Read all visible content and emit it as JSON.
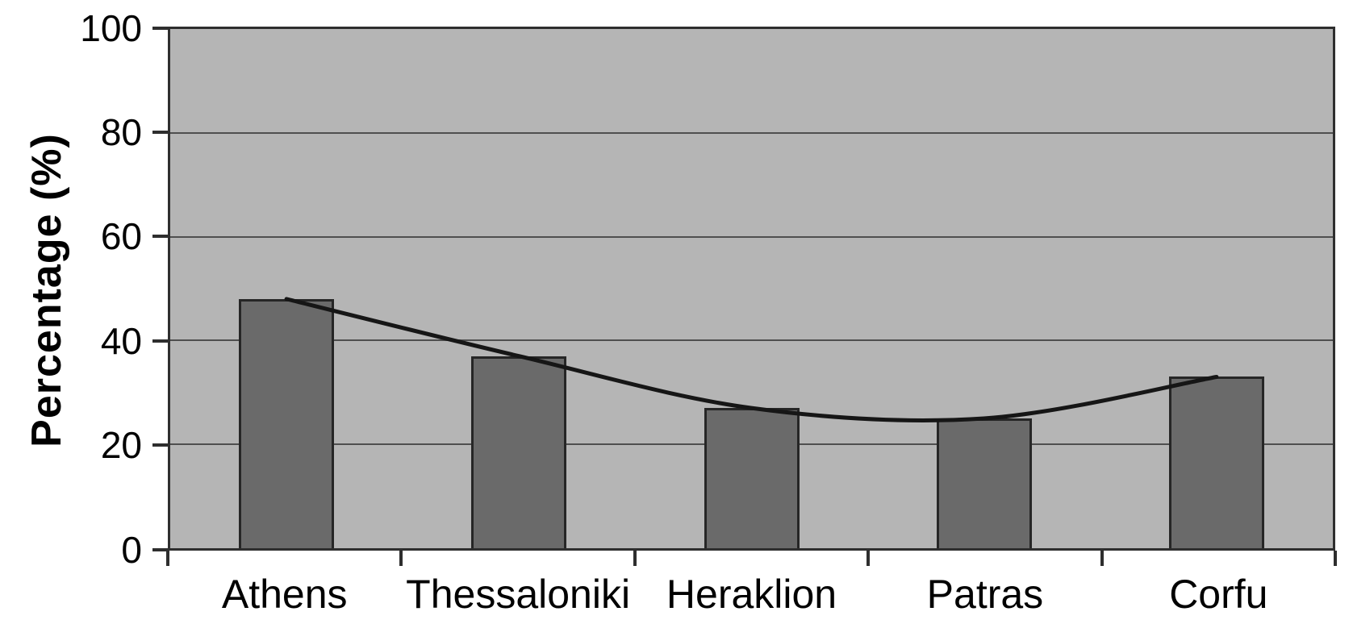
{
  "chart_data": {
    "type": "bar",
    "title": "",
    "xlabel": "",
    "ylabel": "Percentage (%)",
    "categories": [
      "Athens",
      "Thessaloniki",
      "Heraklion",
      "Patras",
      "Corfu"
    ],
    "values": [
      48,
      37,
      27,
      25,
      33
    ],
    "series": [
      {
        "name": "percentage-bars",
        "type": "bar",
        "values": [
          48,
          37,
          27,
          25,
          33
        ]
      },
      {
        "name": "trend-line",
        "type": "line",
        "values": [
          48,
          37,
          27,
          25,
          33
        ]
      }
    ],
    "ylim": [
      0,
      100
    ],
    "yticks": [
      100,
      80,
      60,
      40,
      20,
      0
    ],
    "grid": true,
    "legend_position": "none"
  },
  "colors": {
    "background": "#ffffff",
    "plot_background": "#b5b5b5",
    "bar_fill": "#6a6a6a",
    "bar_border": "#262626",
    "gridline": "#4f4f4f",
    "axis": "#2e2e2e",
    "trend_line": "#161616",
    "text": "#000000"
  }
}
